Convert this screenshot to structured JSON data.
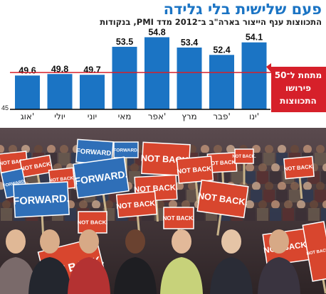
{
  "header": {
    "title": "פעם שלישית בלי גלידה",
    "subtitle": "התכווצות ענף הייצור בארה\"ב ב־2012 מדד PMI, בנקודות"
  },
  "chart_data": {
    "type": "bar",
    "categories": [
      "ינו'",
      "פבר'",
      "מרץ",
      "אפר'",
      "מאי",
      "יוני",
      "יולי",
      "אוג'"
    ],
    "values": [
      54.1,
      52.4,
      53.4,
      54.8,
      53.5,
      49.7,
      49.8,
      49.6
    ],
    "ylim": [
      45,
      56
    ],
    "ytick_label": "45",
    "reference_line": 50,
    "annotation": {
      "lines": [
        "מתחת ל־50",
        "פירושו",
        "התכווצות"
      ],
      "color": "#d6202a"
    },
    "bar_color": "#1b74c4",
    "grid": false
  },
  "photo": {
    "signs": [
      {
        "kind": "forward",
        "text": "FORWARD."
      },
      {
        "kind": "notback",
        "text": "NOT BACK."
      }
    ],
    "colors": {
      "forward": "#2f6fb8",
      "notback": "#d8462e",
      "crowd": "#4a3a3c"
    }
  }
}
